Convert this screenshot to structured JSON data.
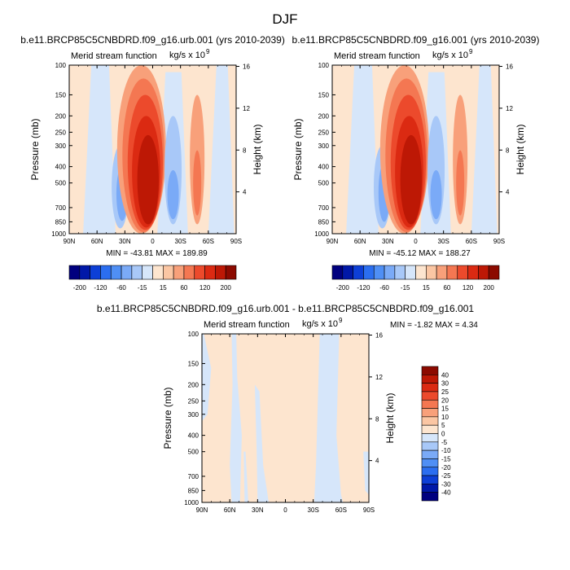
{
  "figure": {
    "title": "DJF",
    "min_max_label": "MIN = -1.82  MAX =  4.34"
  },
  "chart_data": [
    {
      "type": "heatmap",
      "title": "b.e11.BRCP85C5CNBDRD.f09_g16.urb.001 (yrs 2010-2039)",
      "subtitle_left": "Merid stream function",
      "subtitle_right_base": "kg/s x 10",
      "subtitle_right_exp": "9",
      "xlabel": "",
      "ylabel": "Pressure (mb)",
      "ylabel_right": "Height (km)",
      "x_ticks": [
        "90N",
        "60N",
        "30N",
        "0",
        "30S",
        "60S",
        "90S"
      ],
      "y_ticks": [
        "100",
        "150",
        "200",
        "250",
        "300",
        "400",
        "500",
        "700",
        "850",
        "1000"
      ],
      "y_right_ticks": [
        "16",
        "12",
        "8",
        "4"
      ],
      "stats": "MIN = -43.81   MAX = 189.89",
      "min": -43.81,
      "max": 189.89,
      "cells": [
        {
          "lat": 35,
          "pmin": 300,
          "pmax": 930,
          "level": 6
        },
        {
          "lat": 33,
          "pmin": 400,
          "pmax": 840,
          "level": 5
        },
        {
          "lat": 12,
          "pmin": 100,
          "pmax": 1000,
          "level": 10
        },
        {
          "lat": 10,
          "pmin": 120,
          "pmax": 980,
          "level": 11
        },
        {
          "lat": 8,
          "pmin": 150,
          "pmax": 950,
          "level": 12
        },
        {
          "lat": 7,
          "pmin": 200,
          "pmax": 920,
          "level": 13
        },
        {
          "lat": 5,
          "pmin": 260,
          "pmax": 880,
          "level": 14
        },
        {
          "lat": -22,
          "pmin": 200,
          "pmax": 880,
          "level": 6
        },
        {
          "lat": -22,
          "pmin": 420,
          "pmax": 820,
          "level": 5
        },
        {
          "lat": -48,
          "pmin": 150,
          "pmax": 880,
          "level": 10
        },
        {
          "lat": -48,
          "pmin": 320,
          "pmax": 780,
          "level": 11
        }
      ]
    },
    {
      "type": "heatmap",
      "title": "b.e11.BRCP85C5CNBDRD.f09_g16.001 (yrs 2010-2039)",
      "subtitle_left": "Merid stream function",
      "subtitle_right_base": "kg/s x 10",
      "subtitle_right_exp": "9",
      "xlabel": "",
      "ylabel": "Pressure (mb)",
      "ylabel_right": "Height (km)",
      "x_ticks": [
        "90N",
        "60N",
        "30N",
        "0",
        "30S",
        "60S",
        "90S"
      ],
      "y_ticks": [
        "100",
        "150",
        "200",
        "250",
        "300",
        "400",
        "500",
        "700",
        "850",
        "1000"
      ],
      "y_right_ticks": [
        "16",
        "12",
        "8",
        "4"
      ],
      "stats": "MIN = -45.12   MAX = 188.27",
      "min": -45.12,
      "max": 188.27,
      "cells": [
        {
          "lat": 36,
          "pmin": 300,
          "pmax": 930,
          "level": 6
        },
        {
          "lat": 34,
          "pmin": 380,
          "pmax": 850,
          "level": 5
        },
        {
          "lat": 12,
          "pmin": 100,
          "pmax": 1000,
          "level": 10
        },
        {
          "lat": 10,
          "pmin": 120,
          "pmax": 980,
          "level": 11
        },
        {
          "lat": 8,
          "pmin": 150,
          "pmax": 950,
          "level": 12
        },
        {
          "lat": 7,
          "pmin": 200,
          "pmax": 920,
          "level": 13
        },
        {
          "lat": 5,
          "pmin": 260,
          "pmax": 880,
          "level": 14
        },
        {
          "lat": -22,
          "pmin": 200,
          "pmax": 880,
          "level": 6
        },
        {
          "lat": -22,
          "pmin": 420,
          "pmax": 820,
          "level": 5
        },
        {
          "lat": -48,
          "pmin": 150,
          "pmax": 880,
          "level": 10
        },
        {
          "lat": -48,
          "pmin": 320,
          "pmax": 780,
          "level": 11
        }
      ]
    },
    {
      "type": "heatmap",
      "title": "b.e11.BRCP85C5CNBDRD.f09_g16.urb.001 - b.e11.BRCP85C5CNBDRD.f09_g16.001",
      "subtitle_left": "Merid stream function",
      "subtitle_right_base": "kg/s x 10",
      "subtitle_right_exp": "9",
      "xlabel": "",
      "ylabel": "Pressure (mb)",
      "ylabel_right": "Height (km)",
      "x_ticks": [
        "90N",
        "60N",
        "30N",
        "0",
        "30S",
        "60S",
        "90S"
      ],
      "y_ticks": [
        "100",
        "150",
        "200",
        "250",
        "300",
        "400",
        "500",
        "700",
        "850",
        "1000"
      ],
      "y_right_ticks": [
        "16",
        "12",
        "8",
        "4"
      ],
      "min": -1.82,
      "max": 4.34
    }
  ],
  "colorbars": {
    "top": {
      "labels": [
        "-200",
        "-120",
        "-60",
        "-15",
        "15",
        "60",
        "120",
        "200"
      ],
      "colors": [
        "#00007f",
        "#0018a8",
        "#0d3fd6",
        "#2b6ef0",
        "#4f8ff5",
        "#7aaaf7",
        "#a8c8f8",
        "#d6e6fa",
        "#fde5cf",
        "#fbc6a3",
        "#f8a07a",
        "#f47752",
        "#ec4a2c",
        "#db2a12",
        "#bd1805",
        "#8c0a00"
      ]
    },
    "bottom": {
      "labels": [
        "40",
        "30",
        "25",
        "20",
        "15",
        "10",
        "5",
        "0",
        "-5",
        "-10",
        "-15",
        "-20",
        "-25",
        "-30",
        "-40"
      ],
      "colors": [
        "#8c0a00",
        "#bd1805",
        "#db2a12",
        "#ec4a2c",
        "#f47752",
        "#f8a07a",
        "#fbc6a3",
        "#fde5cf",
        "#d6e6fa",
        "#a8c8f8",
        "#7aaaf7",
        "#4f8ff5",
        "#2b6ef0",
        "#0d3fd6",
        "#0018a8",
        "#00007f"
      ]
    }
  }
}
